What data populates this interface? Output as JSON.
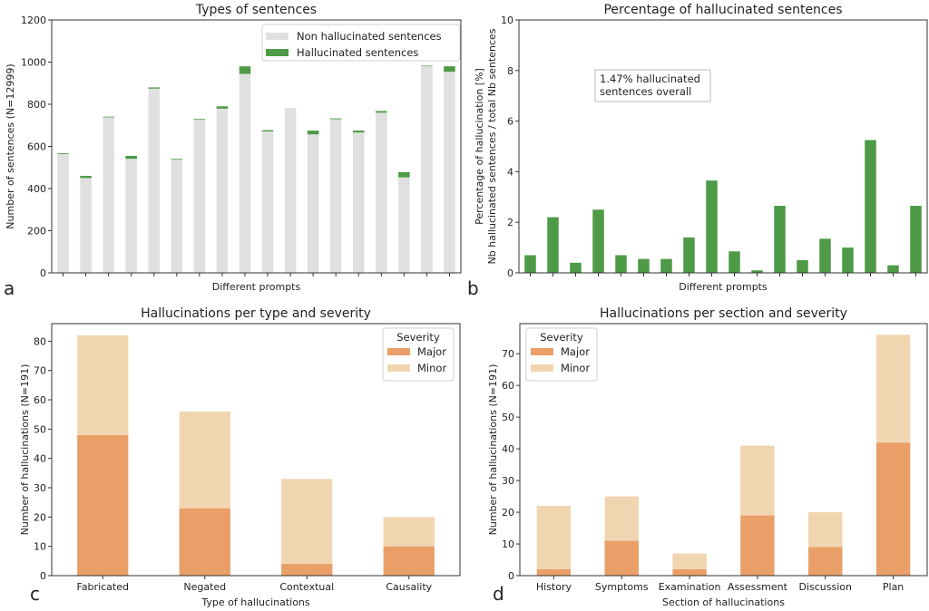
{
  "chart_data": [
    {
      "id": "a",
      "panel_label": "a",
      "type": "bar",
      "stacked": true,
      "title": "Types of sentences",
      "xlabel": "Different prompts",
      "ylabel": "Number of sentences (N=12999)",
      "ylim": [
        0,
        1200
      ],
      "yticks": [
        0,
        200,
        400,
        600,
        800,
        1000,
        1200
      ],
      "categories": [
        "1",
        "2",
        "3",
        "4",
        "5",
        "6",
        "7",
        "8",
        "9",
        "10",
        "11",
        "12",
        "13",
        "14",
        "15",
        "16",
        "17",
        "18"
      ],
      "show_category_labels": false,
      "legend_position": "top-right",
      "series": [
        {
          "name": "Non hallucinated sentences",
          "color": "#e0e0e0",
          "values": [
            564,
            450,
            738,
            541,
            874,
            539,
            726,
            779,
            944,
            671,
            779,
            657,
            729,
            666,
            760,
            453,
            980,
            954
          ]
        },
        {
          "name": "Hallucinated sentences",
          "color": "#4e9a47",
          "values": [
            4,
            10,
            3,
            14,
            6,
            3,
            4,
            11,
            36,
            6,
            1,
            18,
            4,
            9,
            8,
            25,
            3,
            26
          ]
        }
      ]
    },
    {
      "id": "b",
      "panel_label": "b",
      "type": "bar",
      "title": "Percentage of hallucinated sentences",
      "xlabel": "Different prompts",
      "ylabel": "Percentage of hallucination [%]",
      "ylabel2": "Nb hallucinated sentences / total Nb sentences",
      "ylim": [
        0,
        10
      ],
      "yticks": [
        0,
        2,
        4,
        6,
        8,
        10
      ],
      "categories": [
        "1",
        "2",
        "3",
        "4",
        "5",
        "6",
        "7",
        "8",
        "9",
        "10",
        "11",
        "12",
        "13",
        "14",
        "15",
        "16",
        "17",
        "18"
      ],
      "show_category_labels": false,
      "annotation": [
        "1.47% hallucinated",
        "sentences overall"
      ],
      "series": [
        {
          "name": "Percentage of hallucinated sentences",
          "color": "#4e9a47",
          "values": [
            0.7,
            2.2,
            0.4,
            2.5,
            0.7,
            0.55,
            0.55,
            1.4,
            3.65,
            0.85,
            0.1,
            2.65,
            0.5,
            1.35,
            1.0,
            5.25,
            0.3,
            2.65
          ]
        }
      ]
    },
    {
      "id": "c",
      "panel_label": "c",
      "type": "bar",
      "stacked": true,
      "title": "Hallucinations per type and severity",
      "xlabel": "Type of hallucinations",
      "ylabel": "Number of hallucinations (N=191)",
      "ylim": [
        0,
        86
      ],
      "yticks": [
        0,
        10,
        20,
        30,
        40,
        50,
        60,
        70,
        80
      ],
      "categories": [
        "Fabricated",
        "Negated",
        "Contextual",
        "Causality"
      ],
      "legend_title": "Severity",
      "legend_position": "top-right",
      "series": [
        {
          "name": "Major",
          "color": "#e99f67",
          "values": [
            48,
            23,
            4,
            10
          ]
        },
        {
          "name": "Minor",
          "color": "#f0d6b0",
          "values": [
            34,
            33,
            29,
            10
          ]
        }
      ]
    },
    {
      "id": "d",
      "panel_label": "d",
      "type": "bar",
      "stacked": true,
      "title": "Hallucinations per section and severity",
      "xlabel": "Section of hallucinations",
      "ylabel": "Number of hallucinations (N=191)",
      "ylim": [
        0,
        79.5
      ],
      "yticks": [
        0,
        10,
        20,
        30,
        40,
        50,
        60,
        70
      ],
      "categories": [
        "History",
        "Symptoms",
        "Examination",
        "Assessment",
        "Discussion",
        "Plan"
      ],
      "legend_title": "Severity",
      "legend_position": "top-left",
      "series": [
        {
          "name": "Major",
          "color": "#e99f67",
          "values": [
            2,
            11,
            2,
            19,
            9,
            42
          ]
        },
        {
          "name": "Minor",
          "color": "#f0d6b0",
          "values": [
            20,
            14,
            5,
            22,
            11,
            34
          ]
        }
      ]
    }
  ]
}
